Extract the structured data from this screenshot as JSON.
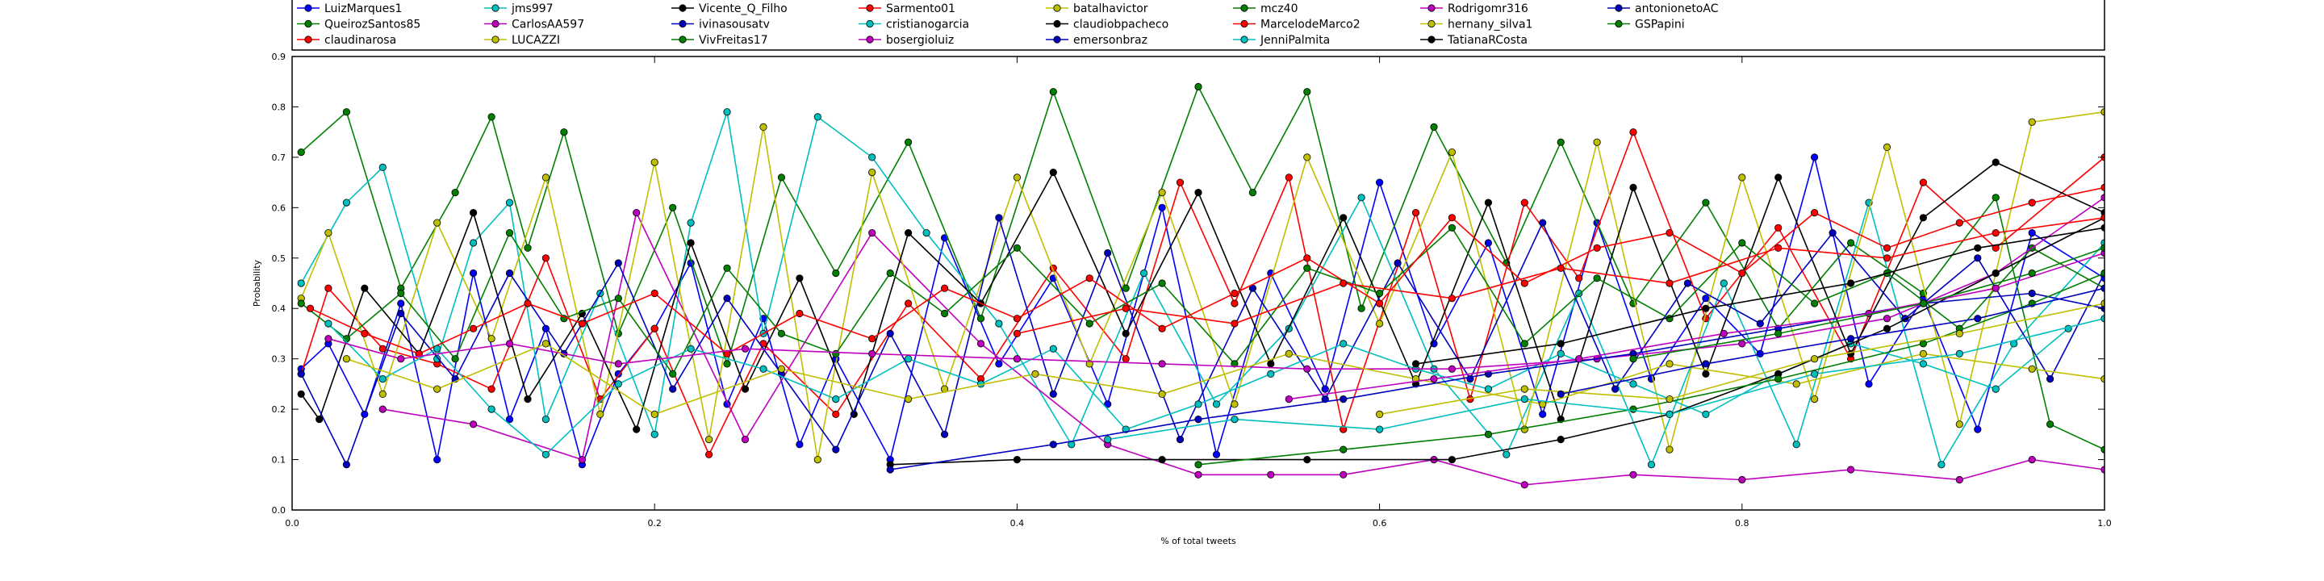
{
  "chart_data": {
    "type": "line",
    "xlabel": "% of total tweets",
    "ylabel": "Probability",
    "xlim": [
      0.0,
      1.0
    ],
    "ylim": [
      0.0,
      0.9
    ],
    "x_ticks": [
      "0.0",
      "0.2",
      "0.4",
      "0.6",
      "0.8",
      "1.0"
    ],
    "y_ticks": [
      "0.0",
      "0.1",
      "0.2",
      "0.3",
      "0.4",
      "0.5",
      "0.6",
      "0.7",
      "0.8",
      "0.9"
    ],
    "grid": false,
    "legend_position": "top",
    "series": [
      {
        "name": "LuizMarques1",
        "color": "#0000ff",
        "x": [
          0.005,
          0.02,
          0.04,
          0.06,
          0.08,
          0.1,
          0.12,
          0.14,
          0.16,
          0.18,
          0.2,
          0.22,
          0.24,
          0.26,
          0.28,
          0.3,
          0.33,
          0.36,
          0.39,
          0.42,
          0.45,
          0.48,
          0.51,
          0.54,
          0.57,
          0.6,
          0.63,
          0.66,
          0.69,
          0.72,
          0.75,
          0.78,
          0.81,
          0.84,
          0.87,
          0.9,
          0.93,
          0.96,
          1.0
        ],
        "y": [
          0.28,
          0.33,
          0.19,
          0.41,
          0.1,
          0.47,
          0.18,
          0.36,
          0.09,
          0.27,
          0.36,
          0.49,
          0.21,
          0.38,
          0.13,
          0.3,
          0.1,
          0.54,
          0.29,
          0.46,
          0.21,
          0.6,
          0.11,
          0.47,
          0.24,
          0.65,
          0.33,
          0.53,
          0.19,
          0.57,
          0.26,
          0.42,
          0.31,
          0.7,
          0.25,
          0.42,
          0.16,
          0.55,
          0.46
        ]
      },
      {
        "name": "QueirozSantos85",
        "color": "#008000",
        "x": [
          0.005,
          0.03,
          0.06,
          0.09,
          0.11,
          0.13,
          0.15,
          0.18,
          0.21,
          0.24,
          0.27,
          0.3,
          0.34,
          0.38,
          0.42,
          0.46,
          0.5,
          0.53,
          0.56,
          0.59,
          0.63,
          0.67,
          0.7,
          0.74,
          0.78,
          0.82,
          0.86,
          0.9,
          0.94,
          0.97,
          1.0
        ],
        "y": [
          0.71,
          0.79,
          0.44,
          0.63,
          0.78,
          0.52,
          0.75,
          0.35,
          0.6,
          0.29,
          0.66,
          0.47,
          0.73,
          0.38,
          0.83,
          0.44,
          0.84,
          0.63,
          0.83,
          0.4,
          0.76,
          0.49,
          0.73,
          0.41,
          0.61,
          0.36,
          0.53,
          0.43,
          0.62,
          0.17,
          0.12
        ]
      },
      {
        "name": "claudinarosa",
        "color": "#ff0000",
        "x": [
          0.005,
          0.02,
          0.05,
          0.08,
          0.11,
          0.14,
          0.17,
          0.2,
          0.23,
          0.26,
          0.3,
          0.34,
          0.38,
          0.42,
          0.46,
          0.49,
          0.52,
          0.55,
          0.58,
          0.62,
          0.65,
          0.68,
          0.71,
          0.74,
          0.78,
          0.82,
          0.86,
          0.9,
          0.94,
          1.0
        ],
        "y": [
          0.27,
          0.44,
          0.32,
          0.29,
          0.24,
          0.5,
          0.22,
          0.36,
          0.11,
          0.33,
          0.19,
          0.41,
          0.26,
          0.48,
          0.3,
          0.65,
          0.41,
          0.66,
          0.16,
          0.59,
          0.22,
          0.61,
          0.46,
          0.75,
          0.38,
          0.56,
          0.3,
          0.65,
          0.52,
          0.7
        ]
      },
      {
        "name": "jms997",
        "color": "#00bfbf",
        "x": [
          0.005,
          0.03,
          0.05,
          0.08,
          0.1,
          0.12,
          0.14,
          0.17,
          0.2,
          0.22,
          0.24,
          0.26,
          0.29,
          0.32,
          0.35,
          0.39,
          0.43,
          0.47,
          0.51,
          0.55,
          0.59,
          0.63,
          0.67,
          0.71,
          0.75,
          0.79,
          0.83,
          0.87,
          0.91,
          0.95,
          1.0
        ],
        "y": [
          0.45,
          0.61,
          0.68,
          0.3,
          0.53,
          0.61,
          0.18,
          0.43,
          0.15,
          0.57,
          0.79,
          0.35,
          0.78,
          0.7,
          0.55,
          0.37,
          0.13,
          0.47,
          0.21,
          0.36,
          0.62,
          0.28,
          0.11,
          0.43,
          0.09,
          0.45,
          0.13,
          0.61,
          0.09,
          0.33,
          0.53
        ]
      },
      {
        "name": "CarlosAA597",
        "color": "#bf00bf",
        "x": [
          0.05,
          0.1,
          0.16,
          0.19,
          0.25,
          0.32,
          0.38,
          0.45,
          0.5,
          0.54,
          0.58,
          0.63,
          0.68,
          0.74,
          0.8,
          0.86,
          0.92,
          0.96,
          1.0
        ],
        "y": [
          0.2,
          0.17,
          0.1,
          0.59,
          0.14,
          0.55,
          0.33,
          0.13,
          0.07,
          0.07,
          0.07,
          0.1,
          0.05,
          0.07,
          0.06,
          0.08,
          0.06,
          0.1,
          0.08
        ]
      },
      {
        "name": "LUCAZZI",
        "color": "#bfbf00",
        "x": [
          0.005,
          0.02,
          0.05,
          0.08,
          0.11,
          0.14,
          0.17,
          0.2,
          0.23,
          0.26,
          0.29,
          0.32,
          0.36,
          0.4,
          0.44,
          0.48,
          0.52,
          0.56,
          0.6,
          0.64,
          0.68,
          0.72,
          0.76,
          0.8,
          0.84,
          0.88,
          0.92,
          0.96,
          1.0
        ],
        "y": [
          0.42,
          0.55,
          0.23,
          0.57,
          0.34,
          0.66,
          0.19,
          0.69,
          0.14,
          0.76,
          0.1,
          0.67,
          0.24,
          0.66,
          0.29,
          0.63,
          0.21,
          0.7,
          0.37,
          0.71,
          0.16,
          0.73,
          0.12,
          0.66,
          0.22,
          0.72,
          0.17,
          0.77,
          0.79
        ]
      },
      {
        "name": "Vicente_Q_Filho",
        "color": "#000000",
        "x": [
          0.005,
          0.015,
          0.04,
          0.07,
          0.1,
          0.13,
          0.16,
          0.19,
          0.22,
          0.25,
          0.28,
          0.31,
          0.34,
          0.38,
          0.42,
          0.46,
          0.5,
          0.54,
          0.58,
          0.62,
          0.66,
          0.7,
          0.74,
          0.78,
          0.82,
          0.86,
          0.9,
          0.94,
          1.0
        ],
        "y": [
          0.23,
          0.18,
          0.44,
          0.31,
          0.59,
          0.22,
          0.39,
          0.16,
          0.53,
          0.24,
          0.46,
          0.19,
          0.55,
          0.41,
          0.67,
          0.35,
          0.63,
          0.29,
          0.58,
          0.25,
          0.61,
          0.18,
          0.64,
          0.27,
          0.66,
          0.31,
          0.58,
          0.69,
          0.59
        ]
      },
      {
        "name": "ivinasousatv",
        "color": "#0000bf",
        "x": [
          0.005,
          0.03,
          0.06,
          0.09,
          0.12,
          0.15,
          0.18,
          0.21,
          0.24,
          0.27,
          0.3,
          0.33,
          0.36,
          0.39,
          0.42,
          0.45,
          0.49,
          0.53,
          0.57,
          0.61,
          0.65,
          0.69,
          0.73,
          0.77,
          0.81,
          0.85,
          0.89,
          0.93,
          0.97,
          1.0
        ],
        "y": [
          0.27,
          0.09,
          0.39,
          0.26,
          0.47,
          0.31,
          0.49,
          0.24,
          0.42,
          0.27,
          0.12,
          0.35,
          0.15,
          0.58,
          0.23,
          0.51,
          0.14,
          0.44,
          0.22,
          0.49,
          0.26,
          0.57,
          0.24,
          0.45,
          0.37,
          0.55,
          0.38,
          0.5,
          0.26,
          0.47
        ]
      },
      {
        "name": "VivFreitas17",
        "color": "#007f00",
        "x": [
          0.005,
          0.03,
          0.06,
          0.09,
          0.12,
          0.15,
          0.18,
          0.21,
          0.24,
          0.27,
          0.3,
          0.33,
          0.36,
          0.4,
          0.44,
          0.48,
          0.52,
          0.56,
          0.6,
          0.64,
          0.68,
          0.72,
          0.76,
          0.8,
          0.84,
          0.88,
          0.92,
          0.96,
          1.0
        ],
        "y": [
          0.41,
          0.34,
          0.43,
          0.3,
          0.55,
          0.38,
          0.42,
          0.27,
          0.48,
          0.35,
          0.31,
          0.47,
          0.39,
          0.52,
          0.37,
          0.45,
          0.29,
          0.48,
          0.43,
          0.56,
          0.33,
          0.46,
          0.38,
          0.53,
          0.41,
          0.47,
          0.36,
          0.52,
          0.44
        ]
      },
      {
        "name": "Sarmento01",
        "color": "#ff0000",
        "x": [
          0.01,
          0.04,
          0.07,
          0.1,
          0.13,
          0.16,
          0.2,
          0.24,
          0.28,
          0.32,
          0.36,
          0.4,
          0.44,
          0.48,
          0.52,
          0.56,
          0.6,
          0.64,
          0.68,
          0.72,
          0.76,
          0.8,
          0.84,
          0.88,
          0.92,
          0.96,
          1.0
        ],
        "y": [
          0.4,
          0.35,
          0.31,
          0.36,
          0.41,
          0.37,
          0.43,
          0.31,
          0.39,
          0.34,
          0.44,
          0.38,
          0.46,
          0.36,
          0.43,
          0.5,
          0.41,
          0.58,
          0.45,
          0.52,
          0.55,
          0.47,
          0.59,
          0.52,
          0.57,
          0.61,
          0.64
        ]
      },
      {
        "name": "cristianogarcia",
        "color": "#00bfbf",
        "x": [
          0.02,
          0.05,
          0.08,
          0.11,
          0.14,
          0.18,
          0.22,
          0.26,
          0.3,
          0.34,
          0.38,
          0.42,
          0.46,
          0.5,
          0.54,
          0.58,
          0.62,
          0.66,
          0.7,
          0.74,
          0.78,
          0.82,
          0.86,
          0.9,
          0.94,
          0.98
        ],
        "y": [
          0.37,
          0.26,
          0.32,
          0.2,
          0.11,
          0.25,
          0.32,
          0.28,
          0.22,
          0.3,
          0.25,
          0.32,
          0.16,
          0.21,
          0.27,
          0.33,
          0.28,
          0.24,
          0.31,
          0.25,
          0.19,
          0.27,
          0.33,
          0.29,
          0.24,
          0.36
        ]
      },
      {
        "name": "bosergioluiz",
        "color": "#bf00bf",
        "x": [
          0.02,
          0.06,
          0.12,
          0.18,
          0.25,
          0.32,
          0.4,
          0.48,
          0.56,
          0.64,
          0.72,
          0.8,
          0.88,
          0.94,
          1.0
        ],
        "y": [
          0.34,
          0.3,
          0.33,
          0.29,
          0.32,
          0.31,
          0.3,
          0.29,
          0.28,
          0.28,
          0.3,
          0.33,
          0.38,
          0.47,
          0.62
        ]
      },
      {
        "name": "batalhavictor",
        "color": "#bfbf00",
        "x": [
          0.03,
          0.08,
          0.14,
          0.2,
          0.27,
          0.34,
          0.41,
          0.48,
          0.55,
          0.62,
          0.69,
          0.76,
          0.83,
          0.9,
          0.96,
          1.0
        ],
        "y": [
          0.3,
          0.24,
          0.33,
          0.19,
          0.28,
          0.22,
          0.27,
          0.23,
          0.31,
          0.26,
          0.21,
          0.29,
          0.25,
          0.31,
          0.28,
          0.26
        ]
      },
      {
        "name": "claudiobpacheco",
        "color": "#000000",
        "x": [
          0.33,
          0.4,
          0.48,
          0.56,
          0.64,
          0.7,
          0.76,
          0.82,
          0.88,
          0.94,
          1.0
        ],
        "y": [
          0.09,
          0.1,
          0.1,
          0.1,
          0.1,
          0.14,
          0.19,
          0.27,
          0.36,
          0.47,
          0.58
        ]
      },
      {
        "name": "emersonbraz",
        "color": "#0000bf",
        "x": [
          0.33,
          0.42,
          0.5,
          0.58,
          0.66,
          0.74,
          0.82,
          0.9,
          0.96,
          1.0
        ],
        "y": [
          0.08,
          0.13,
          0.18,
          0.22,
          0.27,
          0.31,
          0.36,
          0.41,
          0.43,
          0.4
        ]
      },
      {
        "name": "mcz40",
        "color": "#007f00",
        "x": [
          0.5,
          0.58,
          0.66,
          0.74,
          0.82,
          0.9,
          0.96,
          1.0
        ],
        "y": [
          0.09,
          0.12,
          0.15,
          0.2,
          0.26,
          0.33,
          0.41,
          0.47
        ]
      },
      {
        "name": "MarcelodeMarco2",
        "color": "#ff0000",
        "x": [
          0.4,
          0.46,
          0.52,
          0.58,
          0.64,
          0.7,
          0.76,
          0.82,
          0.88,
          0.94,
          1.0
        ],
        "y": [
          0.35,
          0.4,
          0.37,
          0.45,
          0.42,
          0.48,
          0.45,
          0.52,
          0.5,
          0.55,
          0.58
        ]
      },
      {
        "name": "JenniPalmita",
        "color": "#00bfbf",
        "x": [
          0.45,
          0.52,
          0.6,
          0.68,
          0.76,
          0.84,
          0.92,
          1.0
        ],
        "y": [
          0.14,
          0.18,
          0.16,
          0.22,
          0.19,
          0.27,
          0.31,
          0.38
        ]
      },
      {
        "name": "Rodrigomr316",
        "color": "#bf00bf",
        "x": [
          0.55,
          0.63,
          0.71,
          0.79,
          0.87,
          0.94,
          1.0
        ],
        "y": [
          0.22,
          0.26,
          0.3,
          0.35,
          0.39,
          0.44,
          0.51
        ]
      },
      {
        "name": "hernany_silva1",
        "color": "#bfbf00",
        "x": [
          0.6,
          0.68,
          0.76,
          0.84,
          0.92,
          1.0
        ],
        "y": [
          0.19,
          0.24,
          0.22,
          0.3,
          0.35,
          0.41
        ]
      },
      {
        "name": "TatianaRCosta",
        "color": "#000000",
        "x": [
          0.62,
          0.7,
          0.78,
          0.86,
          0.93,
          1.0
        ],
        "y": [
          0.29,
          0.33,
          0.4,
          0.45,
          0.52,
          0.56
        ]
      },
      {
        "name": "antonionetoAC",
        "color": "#0000bf",
        "x": [
          0.7,
          0.78,
          0.86,
          0.93,
          1.0
        ],
        "y": [
          0.23,
          0.29,
          0.34,
          0.38,
          0.44
        ]
      },
      {
        "name": "GSPapini",
        "color": "#007f00",
        "x": [
          0.74,
          0.82,
          0.9,
          0.96,
          1.0
        ],
        "y": [
          0.3,
          0.35,
          0.41,
          0.47,
          0.52
        ]
      }
    ]
  }
}
